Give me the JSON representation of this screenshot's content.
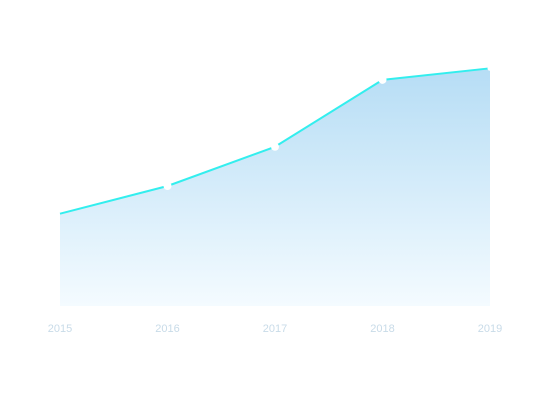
{
  "chart_data": {
    "type": "area",
    "x": [
      "2015",
      "2016",
      "2017",
      "2018",
      "2019"
    ],
    "series": [
      {
        "values": [
          40,
          52,
          69,
          98,
          103
        ]
      }
    ],
    "ylim": [
      0,
      130
    ],
    "grid": false,
    "legend": "none",
    "title": "",
    "xlabel": "",
    "ylabel": "",
    "colors": {
      "line": "#33eeee",
      "area_top": "#b6ddf5",
      "area_bottom": "#f4fbff",
      "point": "#ffffff",
      "tick_label": "#c8dbe8"
    }
  }
}
